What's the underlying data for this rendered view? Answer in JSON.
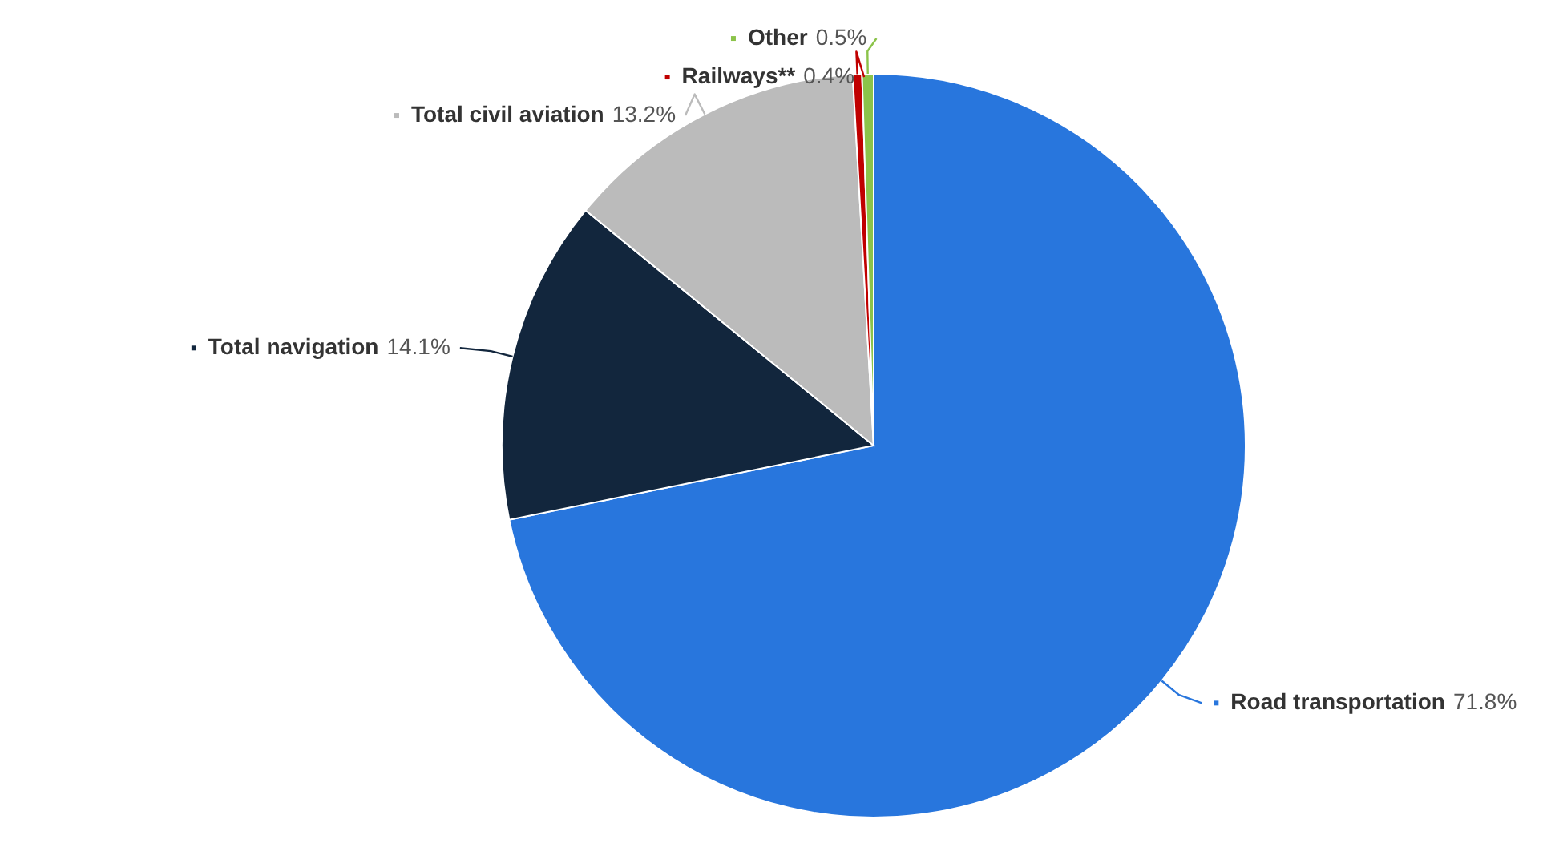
{
  "chart_data": {
    "type": "pie",
    "categories": [
      "Road transportation",
      "Total navigation",
      "Total civil aviation",
      "Railways**",
      "Other"
    ],
    "values": [
      71.8,
      14.1,
      13.2,
      0.4,
      0.5
    ],
    "colors": [
      "#2876dd",
      "#12263d",
      "#bbbbbb",
      "#c00000",
      "#8bc34a"
    ],
    "value_labels": [
      "71.8%",
      "14.1%",
      "13.2%",
      "0.4%",
      "0.5%"
    ],
    "legend": "left"
  }
}
